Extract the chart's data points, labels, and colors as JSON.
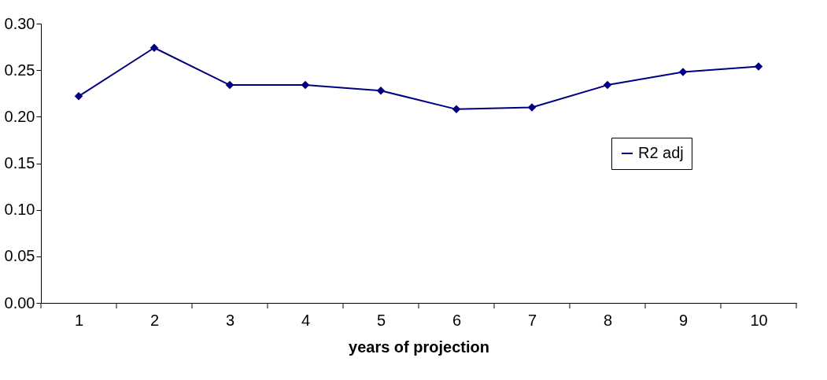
{
  "chart_data": {
    "type": "line",
    "xlabel": "years of projection",
    "categories": [
      "1",
      "2",
      "3",
      "4",
      "5",
      "6",
      "7",
      "8",
      "9",
      "10"
    ],
    "series": [
      {
        "name": "R2 adj",
        "color": "#000080",
        "values": [
          0.222,
          0.274,
          0.234,
          0.234,
          0.228,
          0.208,
          0.21,
          0.234,
          0.248,
          0.254
        ]
      }
    ],
    "ylim": [
      0,
      0.3
    ],
    "yticks": [
      {
        "value": 0,
        "label": "0.00"
      },
      {
        "value": 0.05,
        "label": "0.05"
      },
      {
        "value": 0.1,
        "label": "0.10"
      },
      {
        "value": 0.15,
        "label": "0.15"
      },
      {
        "value": 0.2,
        "label": "0.20"
      },
      {
        "value": 0.25,
        "label": "0.25"
      },
      {
        "value": 0.3,
        "label": "0.30"
      }
    ],
    "legend": "right",
    "marker": "diamond",
    "line_style": "solid",
    "grid": false
  }
}
